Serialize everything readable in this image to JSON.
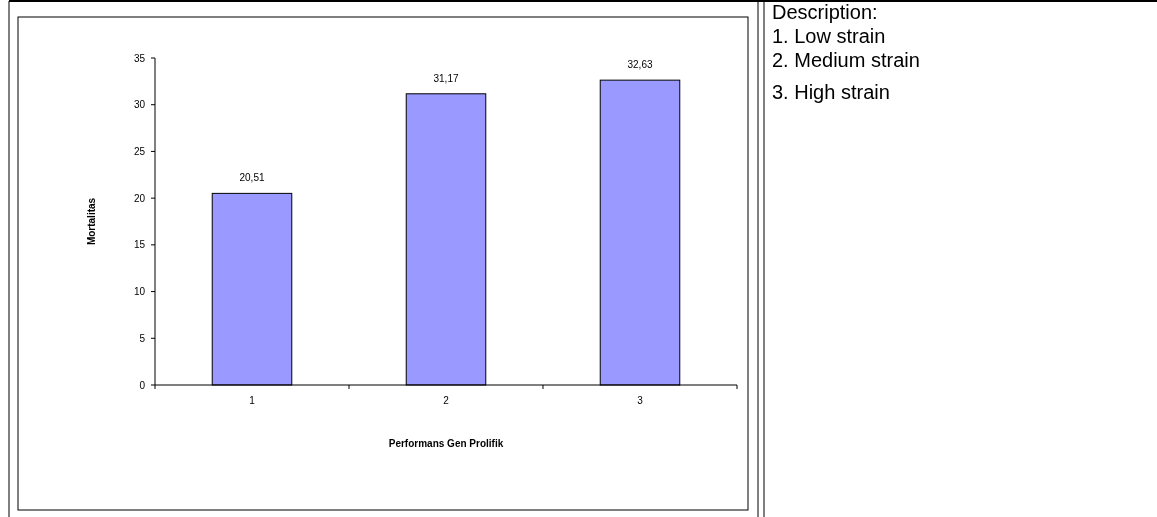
{
  "chart_data": {
    "type": "bar",
    "xlabel": "Performans Gen Prolifik",
    "ylabel": "Mortalitas",
    "categories": [
      "1",
      "2",
      "3"
    ],
    "values": [
      20.51,
      31.17,
      32.63
    ],
    "value_labels": [
      "20,51",
      "31,17",
      "32,63"
    ],
    "color": "#9999ff",
    "ylim": [
      0,
      35
    ],
    "yticks": [
      0,
      5,
      10,
      15,
      20,
      25,
      30,
      35
    ],
    "grid": false,
    "annotations": [
      "Description:",
      "1. Low strain",
      "2. Medium strain",
      "3. High strain"
    ]
  }
}
